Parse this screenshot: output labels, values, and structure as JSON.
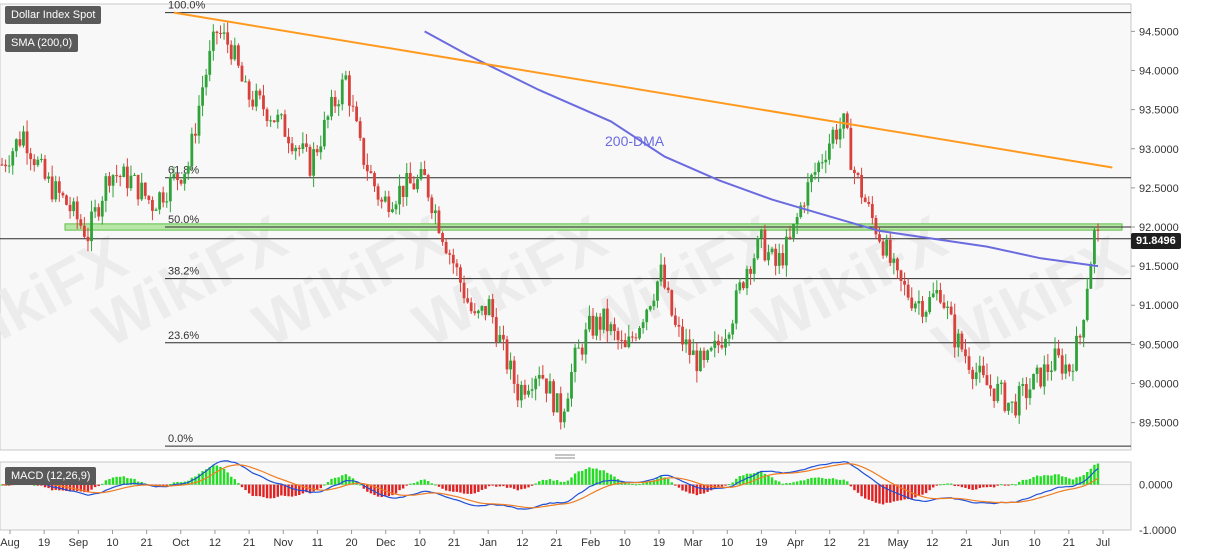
{
  "chart_data": {
    "type": "candlestick",
    "title": "Dollar Index Spot",
    "indicators": {
      "sma": {
        "label": "SMA (200,0)",
        "annotation": "200-DMA",
        "color": "#6b6be0"
      },
      "macd": {
        "label": "MACD (12,26,9)",
        "ylim": [
          -1.0,
          0.5
        ],
        "ticks": [
          "0.0000",
          "-1.0000"
        ]
      }
    },
    "price_axis": {
      "ylim": [
        89.15,
        94.85
      ],
      "ticks": [
        "94.5000",
        "94.0000",
        "93.5000",
        "93.0000",
        "92.5000",
        "92.0000",
        "91.5000",
        "91.0000",
        "90.5000",
        "90.0000",
        "89.5000"
      ],
      "current_price": "91.8496"
    },
    "fibonacci": [
      {
        "label": "100.0%",
        "value": 94.74
      },
      {
        "label": "61.8%",
        "value": 92.63
      },
      {
        "label": "50.0%",
        "value": 92.0
      },
      {
        "label": "38.2%",
        "value": 91.34
      },
      {
        "label": "23.6%",
        "value": 90.52
      },
      {
        "label": "0.0%",
        "value": 89.2
      }
    ],
    "x_labels": [
      "Aug",
      "19",
      "Sep",
      "10",
      "21",
      "Oct",
      "12",
      "21",
      "Nov",
      "11",
      "20",
      "Dec",
      "10",
      "21",
      "Jan",
      "12",
      "21",
      "Feb",
      "10",
      "19",
      "Mar",
      "10",
      "19",
      "Apr",
      "12",
      "21",
      "May",
      "12",
      "21",
      "Jun",
      "10",
      "21",
      "Jul"
    ],
    "ohlc_anchors": [
      [
        0,
        92.8
      ],
      [
        6,
        93.2
      ],
      [
        12,
        92.6
      ],
      [
        18,
        92.3
      ],
      [
        24,
        91.9
      ],
      [
        30,
        92.7
      ],
      [
        36,
        92.6
      ],
      [
        42,
        92.3
      ],
      [
        48,
        92.6
      ],
      [
        52,
        92.8
      ],
      [
        56,
        93.8
      ],
      [
        60,
        94.5
      ],
      [
        64,
        94.3
      ],
      [
        68,
        93.7
      ],
      [
        74,
        93.5
      ],
      [
        80,
        93.2
      ],
      [
        86,
        92.8
      ],
      [
        92,
        93.5
      ],
      [
        96,
        93.9
      ],
      [
        100,
        93.0
      ],
      [
        106,
        92.3
      ],
      [
        112,
        92.5
      ],
      [
        118,
        92.6
      ],
      [
        124,
        91.8
      ],
      [
        128,
        91.3
      ],
      [
        132,
        90.8
      ],
      [
        136,
        91.0
      ],
      [
        140,
        90.4
      ],
      [
        144,
        89.9
      ],
      [
        150,
        90.2
      ],
      [
        156,
        89.6
      ],
      [
        160,
        90.3
      ],
      [
        164,
        90.7
      ],
      [
        168,
        90.8
      ],
      [
        174,
        90.4
      ],
      [
        178,
        90.8
      ],
      [
        184,
        91.4
      ],
      [
        188,
        90.7
      ],
      [
        192,
        90.4
      ],
      [
        196,
        90.2
      ],
      [
        200,
        90.5
      ],
      [
        204,
        90.9
      ],
      [
        208,
        91.5
      ],
      [
        212,
        91.8
      ],
      [
        216,
        91.5
      ],
      [
        220,
        91.8
      ],
      [
        224,
        92.4
      ],
      [
        228,
        92.8
      ],
      [
        232,
        93.2
      ],
      [
        235,
        93.3
      ],
      [
        238,
        92.7
      ],
      [
        242,
        92.2
      ],
      [
        246,
        91.8
      ],
      [
        250,
        91.3
      ],
      [
        254,
        91.1
      ],
      [
        258,
        91.0
      ],
      [
        262,
        91.2
      ],
      [
        266,
        90.6
      ],
      [
        270,
        90.3
      ],
      [
        274,
        90.0
      ],
      [
        278,
        89.9
      ],
      [
        282,
        89.7
      ],
      [
        286,
        89.9
      ],
      [
        290,
        90.1
      ],
      [
        294,
        90.3
      ],
      [
        298,
        90.2
      ],
      [
        301,
        90.6
      ],
      [
        303,
        91.3
      ],
      [
        305,
        91.9
      ],
      [
        306,
        91.85
      ]
    ],
    "sma_anchors": [
      [
        118,
        94.5
      ],
      [
        130,
        94.2
      ],
      [
        150,
        93.75
      ],
      [
        170,
        93.35
      ],
      [
        185,
        92.9
      ],
      [
        200,
        92.6
      ],
      [
        215,
        92.35
      ],
      [
        230,
        92.15
      ],
      [
        245,
        91.95
      ],
      [
        260,
        91.85
      ],
      [
        275,
        91.75
      ],
      [
        290,
        91.6
      ],
      [
        306,
        91.5
      ]
    ],
    "resistance_line": {
      "from": [
        48,
        94.74
      ],
      "to": [
        310,
        92.76
      ],
      "color": "#ff9a1f"
    },
    "support_zone": {
      "from": 91.96,
      "to": 92.04
    }
  }
}
